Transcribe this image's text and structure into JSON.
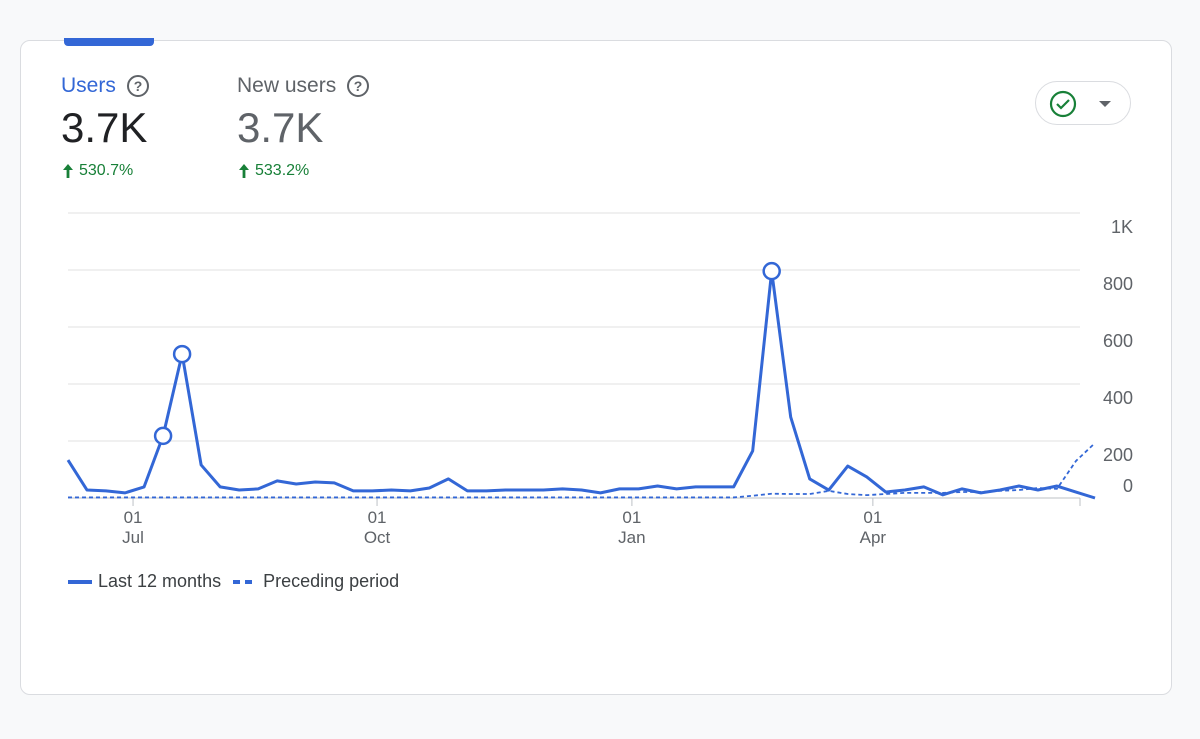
{
  "metrics": [
    {
      "label": "Users",
      "value": "3.7K",
      "change": "530.7%",
      "active": true
    },
    {
      "label": "New users",
      "value": "3.7K",
      "change": "533.2%",
      "active": false
    }
  ],
  "chart_data": {
    "type": "line",
    "x": [
      0,
      1,
      2,
      3,
      4,
      5,
      6,
      7,
      8,
      9,
      10,
      11,
      12,
      13,
      14,
      15,
      16,
      17,
      18,
      19,
      20,
      21,
      22,
      23,
      24,
      25,
      26,
      27,
      28,
      29,
      30,
      31,
      32,
      33,
      34,
      35,
      36,
      37,
      38,
      39,
      40,
      41,
      42,
      43,
      44,
      45,
      46,
      47,
      48,
      49,
      50,
      51,
      52,
      53,
      54
    ],
    "xlim": [
      0,
      54
    ],
    "xticks": [
      {
        "value": 3.42,
        "label": "01\nJul"
      },
      {
        "value": 16.25,
        "label": "01\nOct"
      },
      {
        "value": 29.65,
        "label": "01\nJan"
      },
      {
        "value": 42.32,
        "label": "01\nApr"
      }
    ],
    "ylim": [
      0,
      1000
    ],
    "yticks": [
      0,
      200,
      400,
      600,
      800,
      {
        "value": 1000,
        "label": "1K"
      }
    ],
    "grid": true,
    "series": [
      {
        "name": "Last 12 months",
        "color": "#3367d6",
        "dashed": false,
        "highlighted": [
          5,
          6,
          37
        ],
        "values": [
          133,
          28,
          25,
          18,
          39,
          218,
          505,
          116,
          39,
          28,
          32,
          60,
          49,
          56,
          53,
          25,
          25,
          28,
          25,
          35,
          67,
          25,
          25,
          28,
          28,
          28,
          32,
          28,
          18,
          32,
          32,
          42,
          32,
          39,
          39,
          39,
          165,
          796,
          284,
          67,
          28,
          112,
          74,
          21,
          28,
          39,
          11,
          32,
          18,
          28,
          42,
          28,
          42,
          21,
          0
        ]
      },
      {
        "name": "Preceding period",
        "color": "#3367d6",
        "dashed": true,
        "highlighted": [],
        "values": [
          2,
          2,
          2,
          2,
          2,
          2,
          2,
          2,
          2,
          2,
          2,
          2,
          2,
          2,
          2,
          2,
          2,
          2,
          2,
          2,
          2,
          2,
          2,
          2,
          2,
          2,
          2,
          2,
          2,
          2,
          2,
          2,
          2,
          2,
          2,
          2,
          8,
          15,
          14,
          14,
          25,
          14,
          10,
          14,
          18,
          18,
          18,
          21,
          21,
          25,
          28,
          35,
          32,
          130,
          193
        ]
      }
    ]
  }
}
